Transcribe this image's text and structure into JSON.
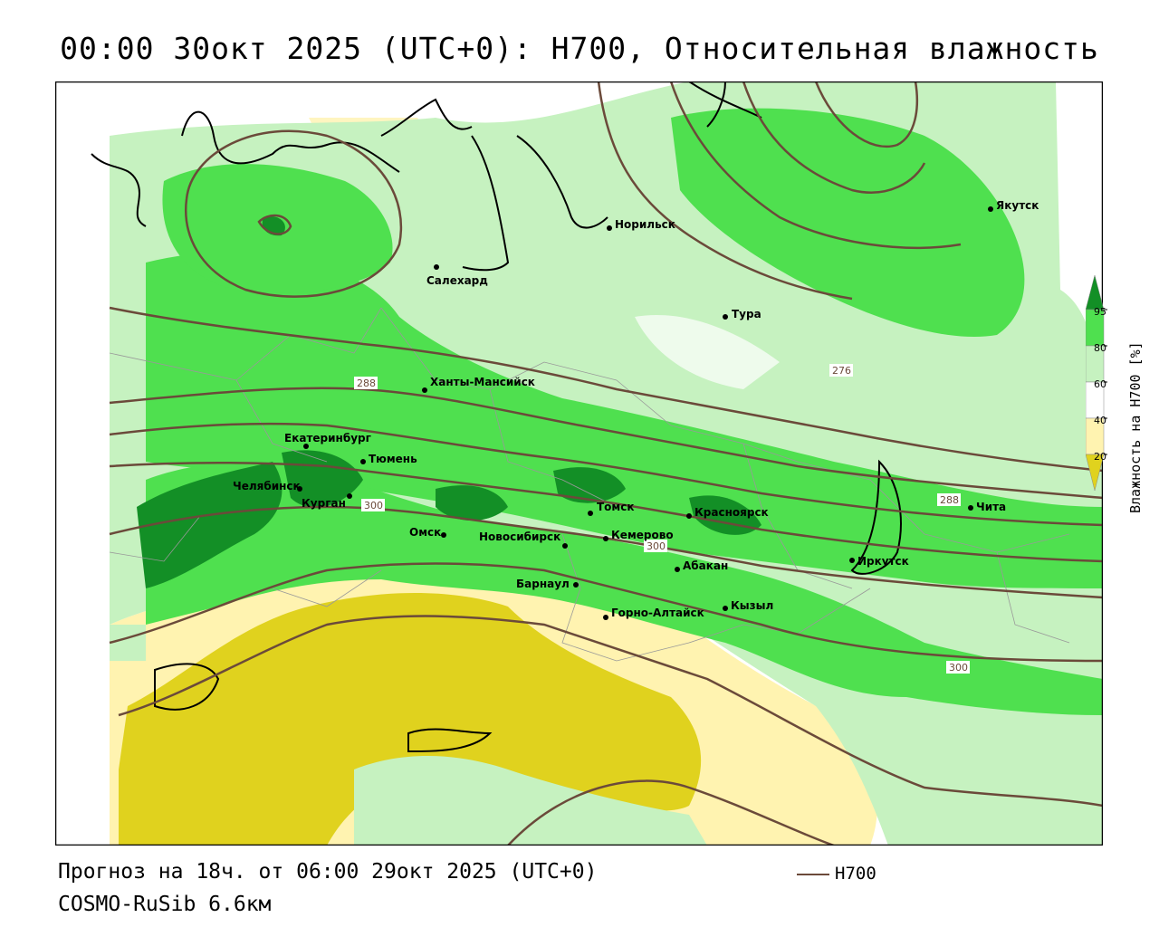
{
  "title": "00:00 30окт 2025 (UTC+0): H700, Относительная влажность",
  "footer": {
    "forecast": "Прогноз на 18ч. от 06:00 29окт 2025 (UTC+0)",
    "model": "COSMO-RuSib 6.6км",
    "contour_legend": "H700"
  },
  "colorbar": {
    "title": "Влажность на H700 [%]",
    "ticks": [
      "95",
      "80",
      "60",
      "40",
      "20"
    ],
    "colors": {
      "c95": "#138f26",
      "c80": "#4fe04f",
      "c60": "#c6f2c0",
      "c40": "#ffffff",
      "c20": "#fff3b0",
      "c0": "#e0d21e"
    }
  },
  "map": {
    "contour_color": "#6b4a3a",
    "contour_labels": {
      "l288a": "288",
      "l276": "276",
      "l288b": "288",
      "l300a": "300",
      "l300b": "300",
      "l300c": "300"
    },
    "cities": {
      "norilsk": "Норильск",
      "yakutsk": "Якутск",
      "salekhard": "Салехард",
      "tura": "Тура",
      "khanty": "Ханты-Мансийск",
      "ekaterinburg": "Екатеринбург",
      "tyumen": "Тюмень",
      "chelyabinsk": "Челябинск",
      "kurgan": "Курган",
      "omsk": "Омск",
      "novosibirsk": "Новосибирск",
      "tomsk": "Томск",
      "kemerovo": "Кемерово",
      "krasnoyarsk": "Красноярск",
      "abakan": "Абакан",
      "barnaul": "Барнаул",
      "gorno": "Горно-Алтайск",
      "kyzyl": "Кызыл",
      "irkutsk": "Иркутск",
      "chita": "Чита"
    }
  }
}
